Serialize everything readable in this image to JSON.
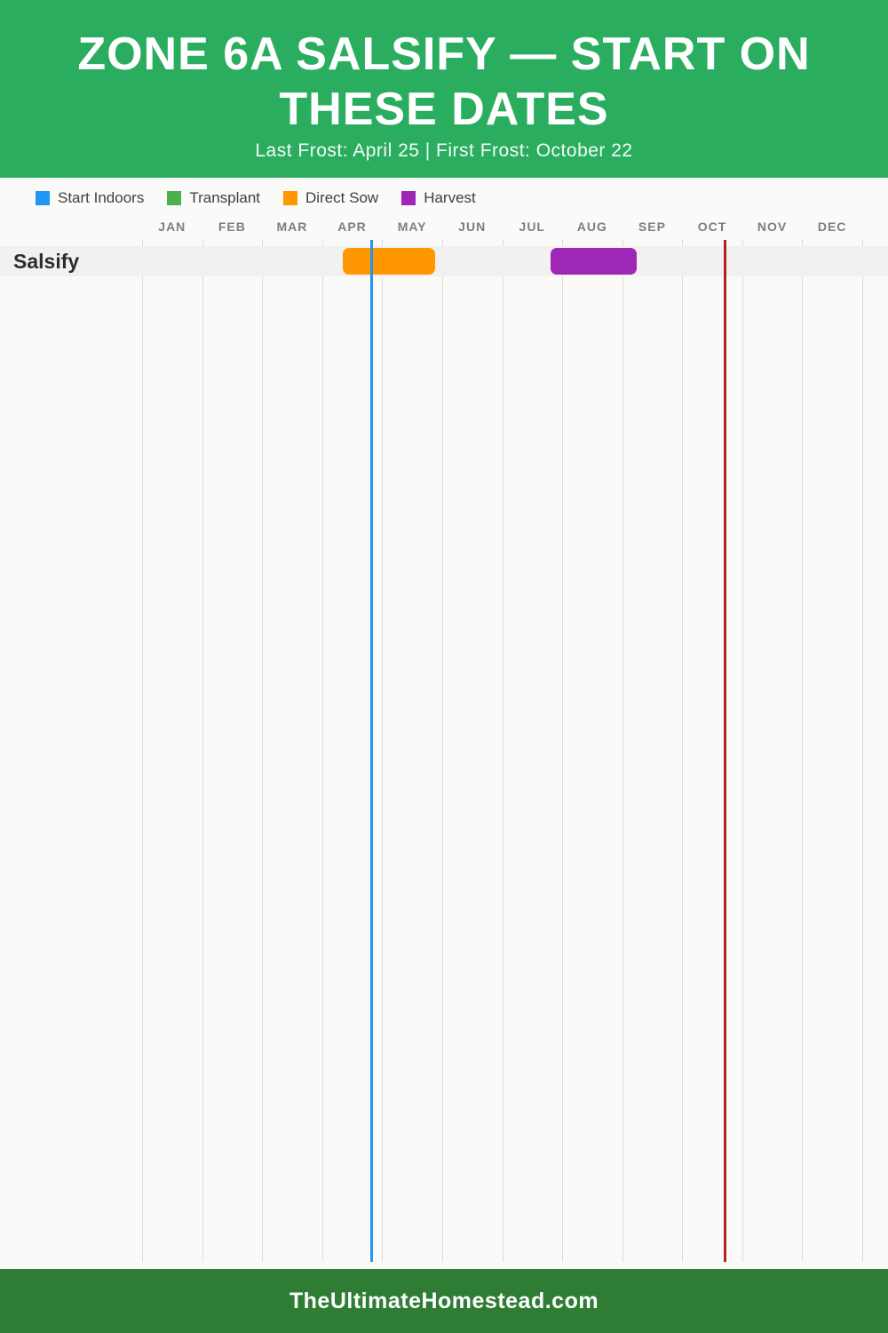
{
  "header": {
    "title": "ZONE 6A SALSIFY — START ON THESE DATES",
    "subtitle": "Last Frost: April 25 | First Frost: October 22"
  },
  "legend": {
    "items": [
      {
        "label": "Start Indoors",
        "color": "#2196f3"
      },
      {
        "label": "Transplant",
        "color": "#4caf50"
      },
      {
        "label": "Direct Sow",
        "color": "#ff9800"
      },
      {
        "label": "Harvest",
        "color": "#9e28b5"
      }
    ]
  },
  "chart_data": {
    "type": "bar",
    "variant": "planting-calendar-timeline",
    "title": "Zone 6a Salsify — Start On These Dates",
    "subtitle": "Last Frost: April 25 | First Frost: October 22",
    "months": [
      "JAN",
      "FEB",
      "MAR",
      "APR",
      "MAY",
      "JUN",
      "JUL",
      "AUG",
      "SEP",
      "OCT",
      "NOV",
      "DEC"
    ],
    "x_axis": {
      "range_months": [
        0,
        12
      ],
      "grid": true
    },
    "legend_position": "top",
    "rows": [
      {
        "label": "Salsify",
        "bars": [
          {
            "series": "Direct Sow",
            "color": "#ff9800",
            "start_month_frac": 3.35,
            "end_month_frac": 4.89,
            "approx_dates": "Apr 11 – May 27"
          },
          {
            "series": "Harvest",
            "color": "#9e28b5",
            "start_month_frac": 6.8,
            "end_month_frac": 8.24,
            "approx_dates": "Jul 25 – Sep 7"
          }
        ]
      }
    ],
    "markers": [
      {
        "name": "Last Frost",
        "date": "April 25",
        "month_frac": 3.82,
        "color": "#2196f3"
      },
      {
        "name": "First Frost",
        "date": "October 22",
        "month_frac": 9.72,
        "color": "#b22126"
      }
    ]
  },
  "footer": {
    "site": "TheUltimateHomestead.com"
  }
}
